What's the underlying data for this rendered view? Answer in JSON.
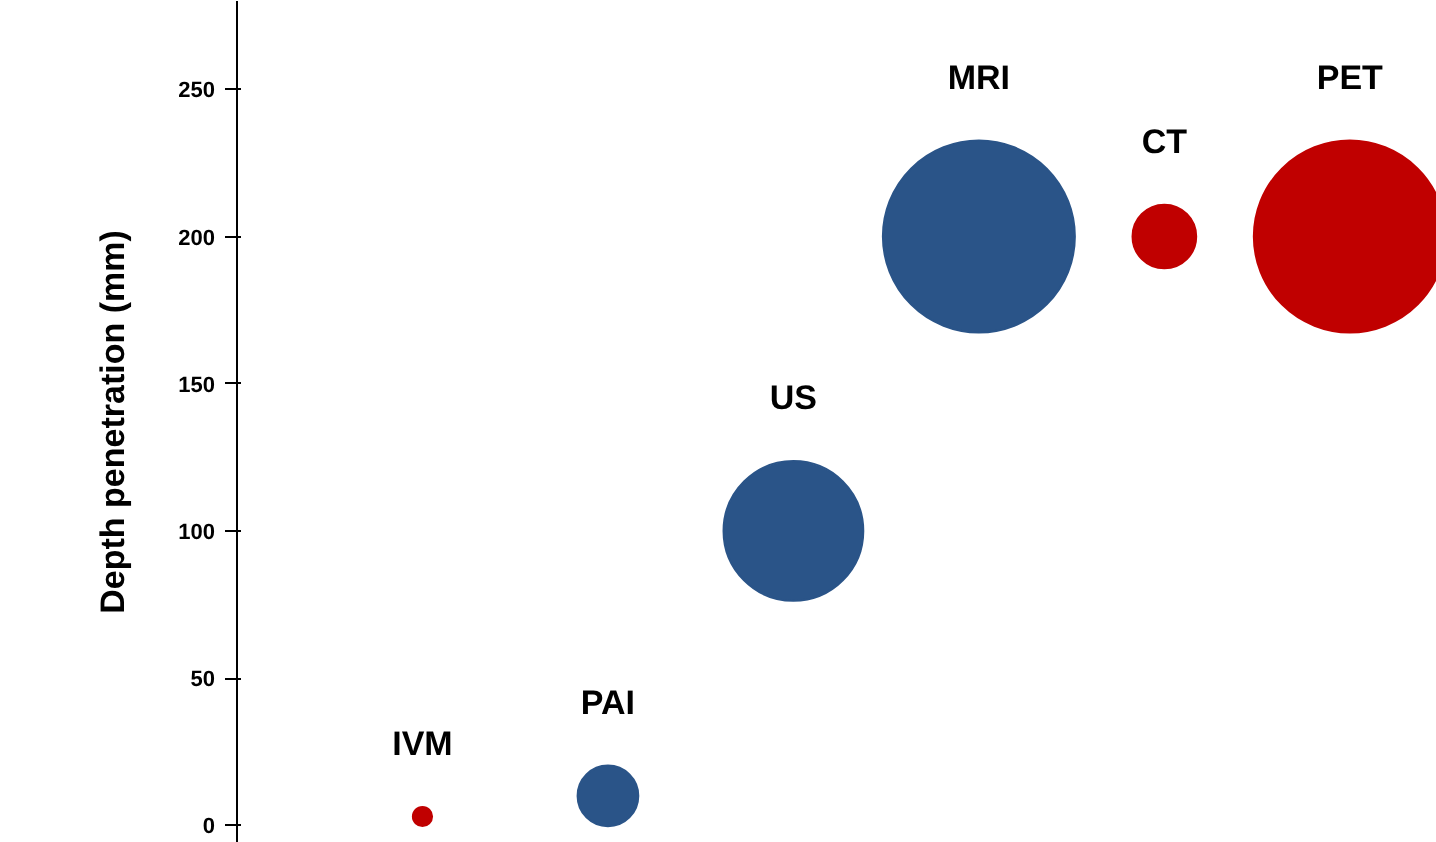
{
  "chart_data": {
    "type": "bubble",
    "ylabel": "Depth penetration (mm)",
    "categories": [
      "IVM",
      "PAI",
      "US",
      "MRI",
      "CT",
      "PET"
    ],
    "values": [
      3,
      10,
      100,
      200,
      200,
      200
    ],
    "sizes": [
      0.01,
      0.1,
      0.53,
      1,
      0.11,
      1
    ],
    "colors": [
      "#c00000",
      "#2a5488",
      "#2a5488",
      "#2a5488",
      "#c00000",
      "#c00000"
    ],
    "ylim": [
      -6,
      280
    ],
    "yticks": [
      0,
      50,
      100,
      150,
      200,
      250
    ],
    "tick_labels": "y",
    "grid": false
  }
}
